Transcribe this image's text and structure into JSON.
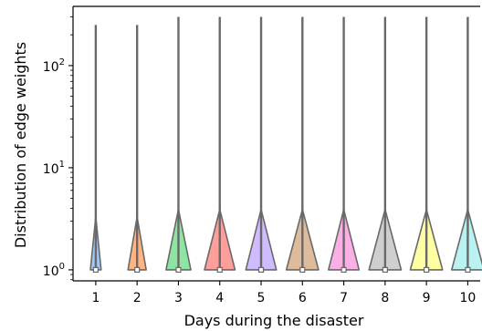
{
  "chart_data": {
    "type": "violin",
    "xlabel": "Days during the disaster",
    "ylabel": "Distribution of edge weights",
    "y_scale": "log",
    "ylim": [
      0.78,
      380
    ],
    "y_ticks": [
      {
        "value": 1,
        "base": "10",
        "exp": "0"
      },
      {
        "value": 10,
        "base": "10",
        "exp": "1"
      },
      {
        "value": 100,
        "base": "10",
        "exp": "2"
      }
    ],
    "categories": [
      "1",
      "2",
      "3",
      "4",
      "5",
      "6",
      "7",
      "8",
      "9",
      "10"
    ],
    "series": [
      {
        "category": "1",
        "min": 1,
        "max": 250,
        "density_top": 3.3,
        "half_width": 0.13,
        "color": "#a1c9f4"
      },
      {
        "category": "2",
        "min": 1,
        "max": 250,
        "density_top": 3.3,
        "half_width": 0.22,
        "color": "#ffb482"
      },
      {
        "category": "3",
        "min": 1,
        "max": 300,
        "density_top": 3.9,
        "half_width": 0.3,
        "color": "#8de5a1"
      },
      {
        "category": "4",
        "min": 1,
        "max": 300,
        "density_top": 3.9,
        "half_width": 0.37,
        "color": "#ff9f9b"
      },
      {
        "category": "5",
        "min": 1,
        "max": 300,
        "density_top": 3.9,
        "half_width": 0.37,
        "color": "#d0bbff"
      },
      {
        "category": "6",
        "min": 1,
        "max": 300,
        "density_top": 3.9,
        "half_width": 0.39,
        "color": "#debb9b"
      },
      {
        "category": "7",
        "min": 1,
        "max": 300,
        "density_top": 3.9,
        "half_width": 0.37,
        "color": "#fab0e4"
      },
      {
        "category": "8",
        "min": 1,
        "max": 300,
        "density_top": 3.9,
        "half_width": 0.39,
        "color": "#cfcfcf"
      },
      {
        "category": "9",
        "min": 1,
        "max": 300,
        "density_top": 3.9,
        "half_width": 0.39,
        "color": "#fffea3"
      },
      {
        "category": "10",
        "min": 1,
        "max": 300,
        "density_top": 3.9,
        "half_width": 0.39,
        "color": "#b9f2f0"
      }
    ],
    "line_color": "#696969",
    "grid": false
  }
}
